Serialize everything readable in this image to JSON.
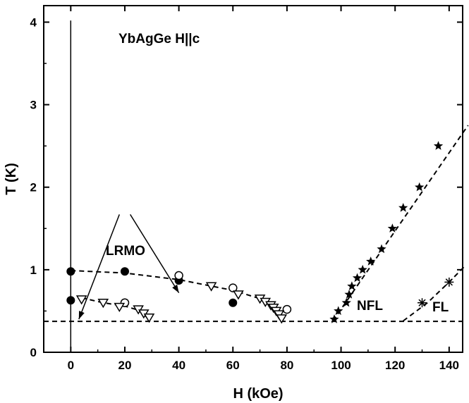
{
  "chart_data": {
    "type": "scatter",
    "xlabel": "H (kOe)",
    "ylabel": "T (K)",
    "xlim": [
      -10,
      145
    ],
    "ylim": [
      0,
      4.2
    ],
    "x_ticks": [
      "0",
      "20",
      "40",
      "60",
      "80",
      "100",
      "120",
      "140"
    ],
    "y_ticks": [
      "0",
      "1",
      "2",
      "3",
      "4"
    ],
    "x_tick_values": [
      0,
      20,
      40,
      60,
      80,
      100,
      120,
      140
    ],
    "y_tick_values": [
      0,
      1,
      2,
      3,
      4
    ],
    "grid": false,
    "annotations": {
      "title_label": "YbAgGe H||c",
      "lrmo": "LRMO",
      "nfl": "NFL",
      "fl": "FL"
    },
    "series": [
      {
        "marker": "filled-circle",
        "points": [
          [
            0,
            0.98
          ],
          [
            0,
            0.63
          ],
          [
            20,
            0.98
          ],
          [
            40,
            0.87
          ],
          [
            60,
            0.6
          ]
        ]
      },
      {
        "marker": "open-circle",
        "points": [
          [
            20,
            0.6
          ],
          [
            40,
            0.93
          ],
          [
            60,
            0.78
          ],
          [
            80,
            0.52
          ]
        ]
      },
      {
        "marker": "open-triangle-down",
        "points": [
          [
            4,
            0.64
          ],
          [
            12,
            0.6
          ],
          [
            18,
            0.55
          ],
          [
            25,
            0.52
          ],
          [
            27,
            0.47
          ],
          [
            29,
            0.42
          ],
          [
            52,
            0.8
          ],
          [
            62,
            0.7
          ],
          [
            70,
            0.65
          ],
          [
            72,
            0.61
          ],
          [
            74,
            0.57
          ],
          [
            75,
            0.54
          ],
          [
            76,
            0.5
          ],
          [
            77,
            0.46
          ],
          [
            78,
            0.41
          ]
        ]
      },
      {
        "marker": "filled-star",
        "points": [
          [
            97.5,
            0.4
          ],
          [
            99,
            0.5
          ],
          [
            102,
            0.6
          ],
          [
            103,
            0.7
          ],
          [
            104,
            0.8
          ],
          [
            106,
            0.9
          ],
          [
            108,
            1.0
          ],
          [
            111,
            1.1
          ],
          [
            115,
            1.25
          ],
          [
            119,
            1.5
          ],
          [
            123,
            1.75
          ],
          [
            129,
            2.0
          ],
          [
            136,
            2.5
          ]
        ]
      },
      {
        "marker": "asterisk",
        "points": [
          [
            130,
            0.6
          ],
          [
            140,
            0.85
          ]
        ]
      }
    ],
    "curves": [
      {
        "style": "dashed",
        "points": [
          [
            0,
            0.99
          ],
          [
            20,
            0.96
          ],
          [
            40,
            0.88
          ],
          [
            60,
            0.75
          ],
          [
            70,
            0.65
          ],
          [
            75,
            0.55
          ],
          [
            78,
            0.42
          ]
        ]
      },
      {
        "style": "dashed",
        "points": [
          [
            4,
            0.66
          ],
          [
            12,
            0.6
          ],
          [
            20,
            0.56
          ],
          [
            26,
            0.5
          ],
          [
            29,
            0.39
          ]
        ]
      },
      {
        "style": "dashed",
        "points": [
          [
            97,
            0.38
          ],
          [
            147,
            2.75
          ]
        ]
      },
      {
        "style": "dashed",
        "points": [
          [
            123,
            0.38
          ],
          [
            132,
            0.6
          ],
          [
            140,
            0.85
          ],
          [
            146,
            1.05
          ]
        ]
      },
      {
        "style": "dashed",
        "points": [
          [
            -10,
            0.375
          ],
          [
            145,
            0.375
          ]
        ]
      },
      {
        "style": "solid",
        "points": [
          [
            0,
            0
          ],
          [
            0,
            4.02
          ]
        ]
      }
    ],
    "arrows": [
      {
        "from": [
          18,
          1.67
        ],
        "to": [
          3,
          0.4
        ]
      },
      {
        "from": [
          22,
          1.67
        ],
        "to": [
          40,
          0.72
        ]
      }
    ]
  }
}
